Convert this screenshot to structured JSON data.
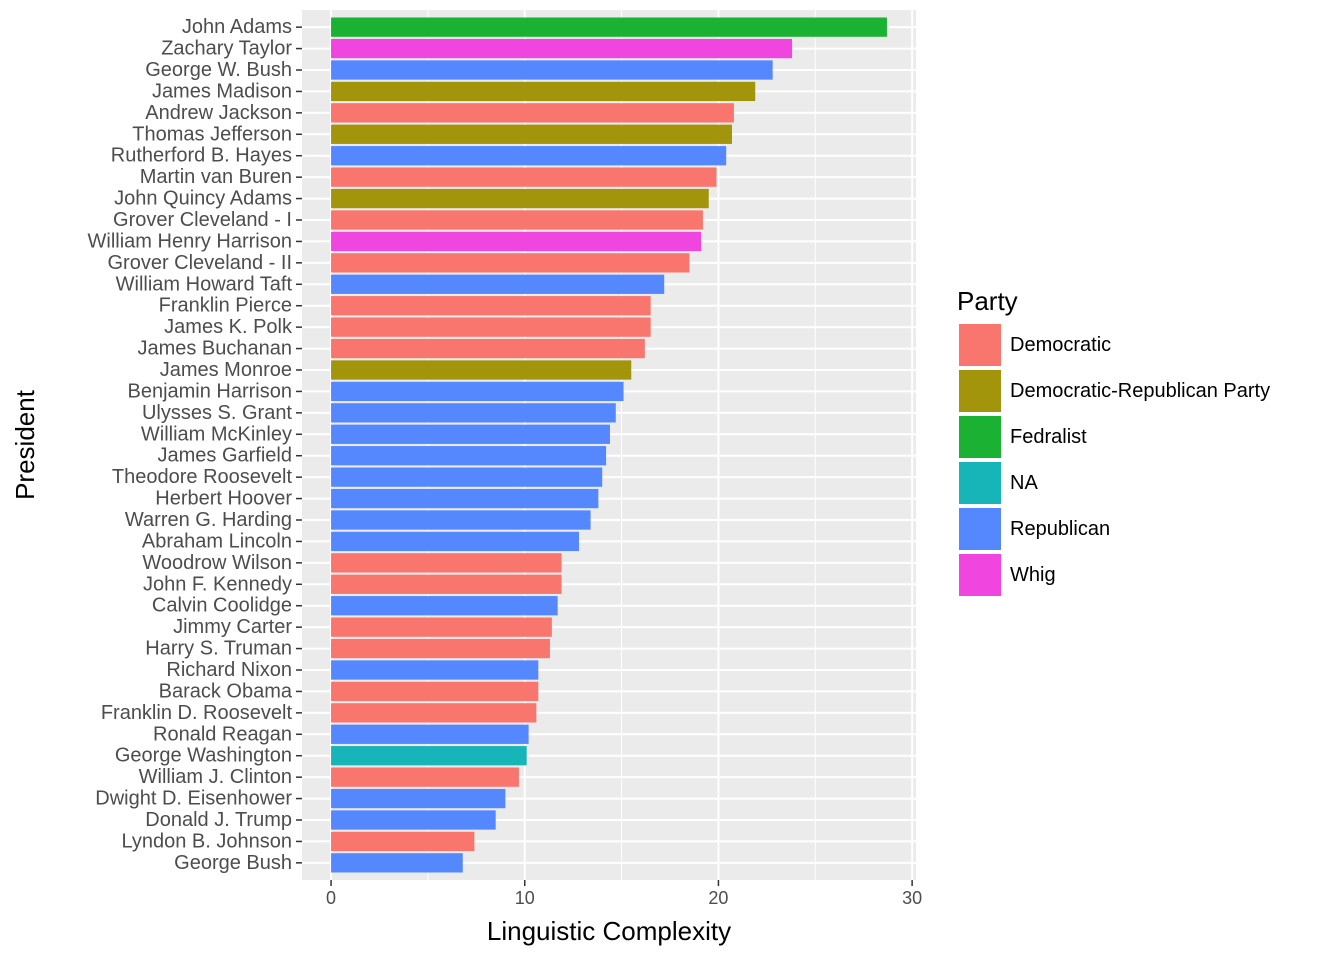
{
  "chart_data": {
    "type": "bar",
    "orientation": "horizontal",
    "xlabel": "Linguistic Complexity",
    "ylabel": "President",
    "xlim": [
      -1.5,
      30.2
    ],
    "xticks": [
      0,
      10,
      20,
      30
    ],
    "grid": true,
    "legend": {
      "title": "Party",
      "placement": "right",
      "entries": [
        {
          "label": "Democratic",
          "color": "#F8766D"
        },
        {
          "label": "Democratic-Republican Party",
          "color": "#A3950B"
        },
        {
          "label": "Fedralist",
          "color": "#1BB233"
        },
        {
          "label": "NA",
          "color": "#17B5B8"
        },
        {
          "label": "Republican",
          "color": "#5588FF"
        },
        {
          "label": "Whig",
          "color": "#F045DF"
        }
      ]
    },
    "bars": [
      {
        "president": "John Adams",
        "value": 28.7,
        "party": "Fedralist"
      },
      {
        "president": "Zachary Taylor",
        "value": 23.8,
        "party": "Whig"
      },
      {
        "president": "George W. Bush",
        "value": 22.8,
        "party": "Republican"
      },
      {
        "president": "James Madison",
        "value": 21.9,
        "party": "Democratic-Republican Party"
      },
      {
        "president": "Andrew Jackson",
        "value": 20.8,
        "party": "Democratic"
      },
      {
        "president": "Thomas Jefferson",
        "value": 20.7,
        "party": "Democratic-Republican Party"
      },
      {
        "president": "Rutherford B. Hayes",
        "value": 20.4,
        "party": "Republican"
      },
      {
        "president": "Martin van Buren",
        "value": 19.9,
        "party": "Democratic"
      },
      {
        "president": "John Quincy Adams",
        "value": 19.5,
        "party": "Democratic-Republican Party"
      },
      {
        "president": "Grover Cleveland - I",
        "value": 19.2,
        "party": "Democratic"
      },
      {
        "president": "William Henry Harrison",
        "value": 19.1,
        "party": "Whig"
      },
      {
        "president": "Grover Cleveland - II",
        "value": 18.5,
        "party": "Democratic"
      },
      {
        "president": "William Howard Taft",
        "value": 17.2,
        "party": "Republican"
      },
      {
        "president": "Franklin Pierce",
        "value": 16.5,
        "party": "Democratic"
      },
      {
        "president": "James K. Polk",
        "value": 16.5,
        "party": "Democratic"
      },
      {
        "president": "James Buchanan",
        "value": 16.2,
        "party": "Democratic"
      },
      {
        "president": "James Monroe",
        "value": 15.5,
        "party": "Democratic-Republican Party"
      },
      {
        "president": "Benjamin Harrison",
        "value": 15.1,
        "party": "Republican"
      },
      {
        "president": "Ulysses S. Grant",
        "value": 14.7,
        "party": "Republican"
      },
      {
        "president": "William McKinley",
        "value": 14.4,
        "party": "Republican"
      },
      {
        "president": "James Garfield",
        "value": 14.2,
        "party": "Republican"
      },
      {
        "president": "Theodore Roosevelt",
        "value": 14.0,
        "party": "Republican"
      },
      {
        "president": "Herbert Hoover",
        "value": 13.8,
        "party": "Republican"
      },
      {
        "president": "Warren G. Harding",
        "value": 13.4,
        "party": "Republican"
      },
      {
        "president": "Abraham Lincoln",
        "value": 12.8,
        "party": "Republican"
      },
      {
        "president": "Woodrow Wilson",
        "value": 11.9,
        "party": "Democratic"
      },
      {
        "president": "John F. Kennedy",
        "value": 11.9,
        "party": "Democratic"
      },
      {
        "president": "Calvin Coolidge",
        "value": 11.7,
        "party": "Republican"
      },
      {
        "president": "Jimmy Carter",
        "value": 11.4,
        "party": "Democratic"
      },
      {
        "president": "Harry S. Truman",
        "value": 11.3,
        "party": "Democratic"
      },
      {
        "president": "Richard Nixon",
        "value": 10.7,
        "party": "Republican"
      },
      {
        "president": "Barack Obama",
        "value": 10.7,
        "party": "Democratic"
      },
      {
        "president": "Franklin D. Roosevelt",
        "value": 10.6,
        "party": "Democratic"
      },
      {
        "president": "Ronald Reagan",
        "value": 10.2,
        "party": "Republican"
      },
      {
        "president": "George Washington",
        "value": 10.1,
        "party": "NA"
      },
      {
        "president": "William J. Clinton",
        "value": 9.7,
        "party": "Democratic"
      },
      {
        "president": "Dwight D. Eisenhower",
        "value": 9.0,
        "party": "Republican"
      },
      {
        "president": "Donald J. Trump",
        "value": 8.5,
        "party": "Republican"
      },
      {
        "president": "Lyndon B. Johnson",
        "value": 7.4,
        "party": "Democratic"
      },
      {
        "president": "George Bush",
        "value": 6.8,
        "party": "Republican"
      }
    ]
  }
}
